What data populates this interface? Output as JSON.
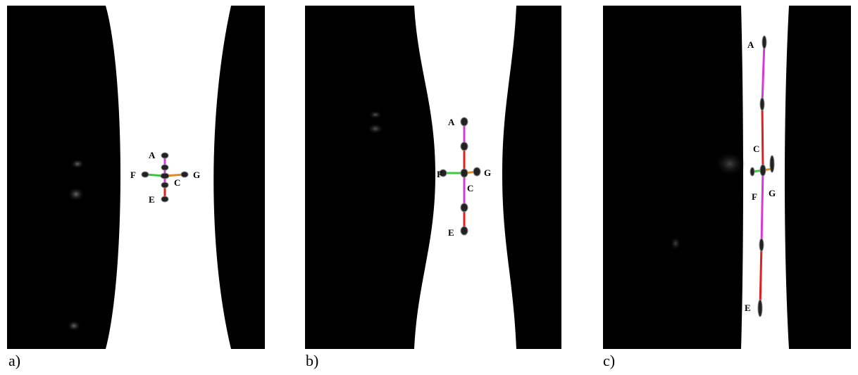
{
  "colors": {
    "background": "#ffffff",
    "tissue": "#000000",
    "segment_magenta": "#d63ad6",
    "segment_red": "#e02020",
    "segment_green": "#3cc83c",
    "segment_orange": "#e58a1f"
  },
  "panels": [
    {
      "id": "a",
      "caption": "a)",
      "labels": {
        "A": "A",
        "C": "C",
        "E": "E",
        "F": "F",
        "G": "G"
      }
    },
    {
      "id": "b",
      "caption": "b)",
      "labels": {
        "A": "A",
        "C": "C",
        "E": "E",
        "F": "F",
        "G": "G"
      }
    },
    {
      "id": "c",
      "caption": "c)",
      "labels": {
        "A": "A",
        "C": "C",
        "E": "E",
        "F": "F",
        "G": "G"
      }
    }
  ]
}
